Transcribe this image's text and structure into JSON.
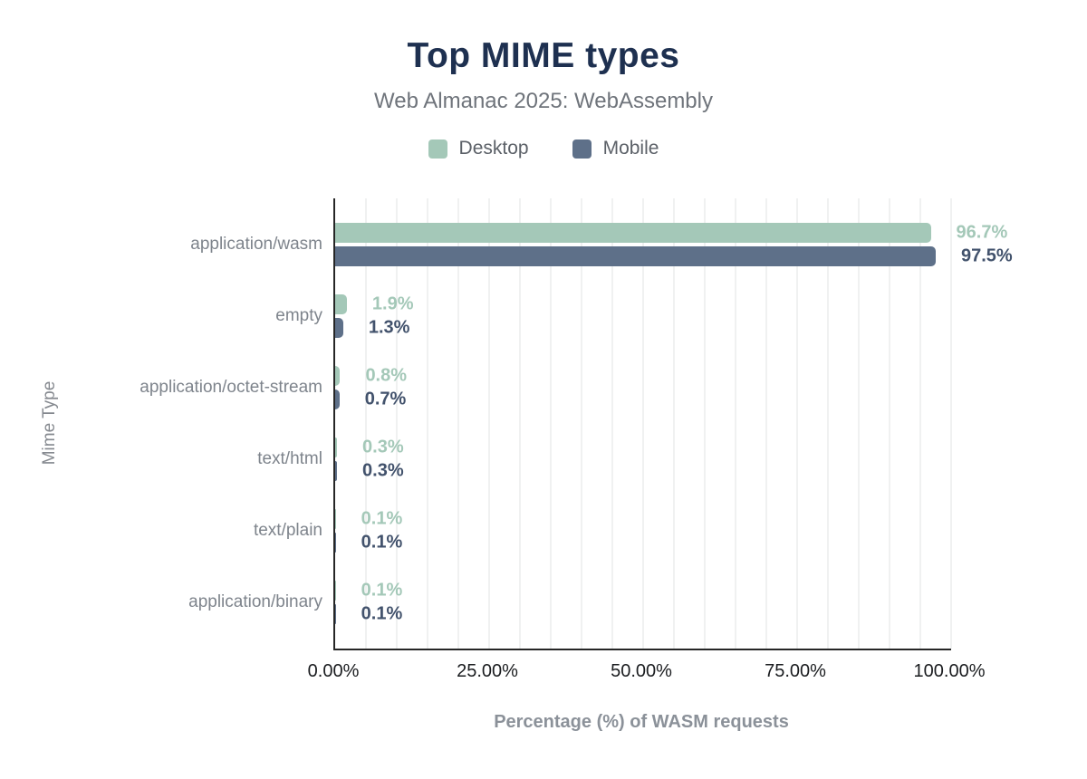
{
  "chart_data": {
    "type": "bar",
    "orientation": "horizontal",
    "title": "Top MIME types",
    "subtitle": "Web Almanac 2025: WebAssembly",
    "xlabel": "Percentage (%) of WASM requests",
    "ylabel": "Mime Type",
    "xlim": [
      0,
      100
    ],
    "grid": true,
    "gridline_step_percent": 5,
    "legend_position": "top",
    "x_tick_values": [
      0,
      25,
      50,
      75,
      100
    ],
    "x_tick_labels": [
      "0.00%",
      "25.00%",
      "50.00%",
      "75.00%",
      "100.00%"
    ],
    "categories": [
      "application/wasm",
      "empty",
      "application/octet-stream",
      "text/html",
      "text/plain",
      "application/binary"
    ],
    "series": [
      {
        "name": "Desktop",
        "color": "#a4c8b8",
        "label_color": "#a4c8b8",
        "values": [
          96.7,
          1.9,
          0.8,
          0.3,
          0.1,
          0.1
        ]
      },
      {
        "name": "Mobile",
        "color": "#5e7089",
        "label_color": "#42526c",
        "values": [
          97.5,
          1.3,
          0.7,
          0.3,
          0.1,
          0.1
        ]
      }
    ],
    "value_label_format": "{value}%"
  },
  "colors": {
    "title": "#1e3050",
    "subtitle": "#6f747b",
    "category_label": "#7e848c",
    "axis_line": "#262626",
    "gridline": "#f0f1f1",
    "tick_label": "#1a1c1f",
    "axis_title": "#8b9199"
  }
}
